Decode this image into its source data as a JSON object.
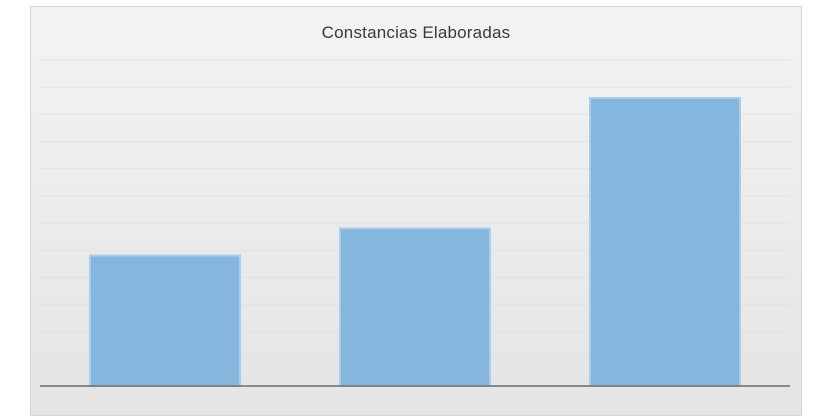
{
  "chart_data": {
    "type": "bar",
    "title": "Constancias Elaboradas",
    "categories": [
      "",
      "",
      ""
    ],
    "values": [
      48,
      58,
      106
    ],
    "data_labels": [
      "",
      "",
      ""
    ],
    "xlabel": "",
    "ylabel": "",
    "ylim": [
      0,
      120
    ],
    "grid": true,
    "legend": "none",
    "colors": {
      "bar": "#84b6de",
      "bar_edge": "#a9cdea",
      "axis": "#6b6b6b",
      "grid": "#e2e2e2",
      "background": "#eeeeee"
    }
  }
}
